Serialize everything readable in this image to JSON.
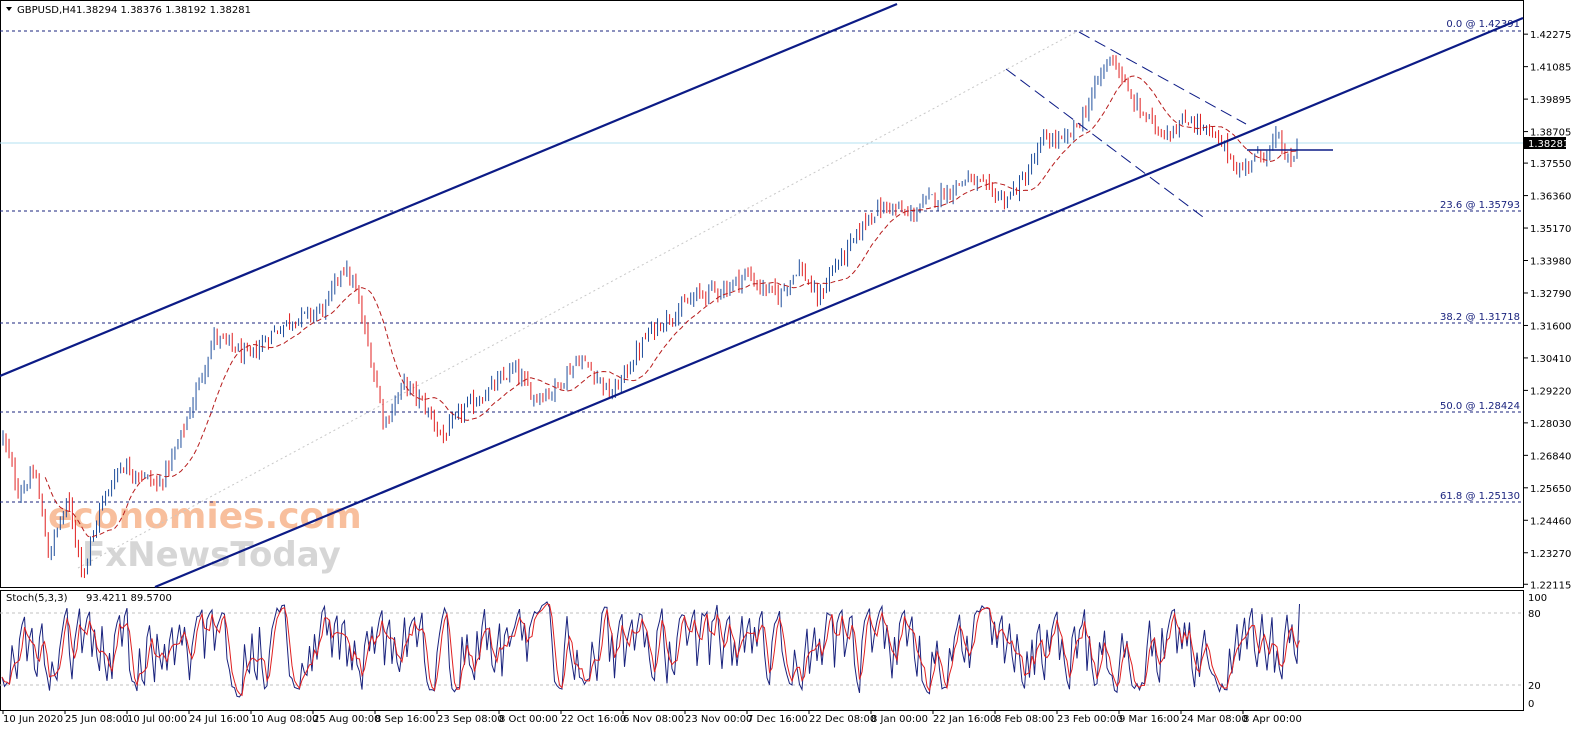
{
  "header": {
    "symbol_label": "GBPUSD,H4",
    "ohlc_text": "1.38294 1.38376 1.38192 1.38281",
    "menu_icon": "triangle-down-icon"
  },
  "watermark": {
    "line1": "economies.com",
    "line2": "FxNewsToday"
  },
  "colors": {
    "up_bar": "#1f4e9c",
    "down_bar": "#e02020",
    "trend_line": "#0c1b86",
    "fib_line": "#1a237e",
    "ma_line": "#b71c1c",
    "price_line": "#b3e0f2",
    "stoch_main": "#1a237e",
    "stoch_signal": "#e02020",
    "watermark_orange": "#f7b58c",
    "watermark_gray": "#cfcfcf"
  },
  "chart_data": {
    "type": "candlestick",
    "title": "GBPUSD,H4",
    "current_price": "1.38281",
    "ylim": [
      1.21,
      1.434
    ],
    "y_ticks": [
      "1.42275",
      "1.41085",
      "1.39895",
      "1.38705",
      "1.37550",
      "1.36360",
      "1.35170",
      "1.33980",
      "1.32790",
      "1.31600",
      "1.30410",
      "1.29220",
      "1.28030",
      "1.26840",
      "1.25650",
      "1.24460",
      "1.23270",
      "1.22115"
    ],
    "x_ticks": [
      "10 Jun 2020",
      "25 Jun 08:00",
      "10 Jul 00:00",
      "24 Jul 16:00",
      "10 Aug 08:00",
      "25 Aug 00:00",
      "8 Sep 16:00",
      "23 Sep 08:00",
      "8 Oct 00:00",
      "22 Oct 16:00",
      "6 Nov 08:00",
      "23 Nov 00:00",
      "7 Dec 16:00",
      "22 Dec 08:00",
      "8 Jan 00:00",
      "22 Jan 16:00",
      "8 Feb 08:00",
      "23 Feb 00:00",
      "9 Mar 16:00",
      "24 Mar 08:00",
      "8 Apr 00:00"
    ],
    "price_path": [
      [
        0,
        1.275
      ],
      [
        0.012,
        1.255
      ],
      [
        0.025,
        1.262
      ],
      [
        0.035,
        1.232
      ],
      [
        0.05,
        1.252
      ],
      [
        0.062,
        1.225
      ],
      [
        0.075,
        1.249
      ],
      [
        0.09,
        1.265
      ],
      [
        0.105,
        1.262
      ],
      [
        0.12,
        1.257
      ],
      [
        0.135,
        1.272
      ],
      [
        0.148,
        1.29
      ],
      [
        0.163,
        1.312
      ],
      [
        0.178,
        1.308
      ],
      [
        0.19,
        1.304
      ],
      [
        0.205,
        1.312
      ],
      [
        0.222,
        1.318
      ],
      [
        0.238,
        1.32
      ],
      [
        0.25,
        1.323
      ],
      [
        0.262,
        1.338
      ],
      [
        0.272,
        1.33
      ],
      [
        0.285,
        1.302
      ],
      [
        0.295,
        1.28
      ],
      [
        0.31,
        1.295
      ],
      [
        0.325,
        1.287
      ],
      [
        0.34,
        1.275
      ],
      [
        0.355,
        1.285
      ],
      [
        0.375,
        1.292
      ],
      [
        0.395,
        1.3
      ],
      [
        0.41,
        1.29
      ],
      [
        0.425,
        1.292
      ],
      [
        0.445,
        1.304
      ],
      [
        0.46,
        1.297
      ],
      [
        0.47,
        1.29
      ],
      [
        0.485,
        1.302
      ],
      [
        0.5,
        1.314
      ],
      [
        0.52,
        1.321
      ],
      [
        0.54,
        1.328
      ],
      [
        0.56,
        1.33
      ],
      [
        0.575,
        1.335
      ],
      [
        0.585,
        1.33
      ],
      [
        0.6,
        1.327
      ],
      [
        0.615,
        1.338
      ],
      [
        0.63,
        1.325
      ],
      [
        0.64,
        1.336
      ],
      [
        0.655,
        1.345
      ],
      [
        0.67,
        1.357
      ],
      [
        0.685,
        1.36
      ],
      [
        0.7,
        1.356
      ],
      [
        0.715,
        1.362
      ],
      [
        0.73,
        1.365
      ],
      [
        0.745,
        1.37
      ],
      [
        0.76,
        1.366
      ],
      [
        0.775,
        1.362
      ],
      [
        0.79,
        1.37
      ],
      [
        0.805,
        1.385
      ],
      [
        0.82,
        1.383
      ],
      [
        0.835,
        1.393
      ],
      [
        0.85,
        1.41
      ],
      [
        0.858,
        1.415
      ],
      [
        0.87,
        1.4
      ],
      [
        0.882,
        1.393
      ],
      [
        0.895,
        1.387
      ],
      [
        0.905,
        1.388
      ],
      [
        0.918,
        1.392
      ],
      [
        0.93,
        1.387
      ],
      [
        0.945,
        1.381
      ],
      [
        0.955,
        1.372
      ],
      [
        0.965,
        1.377
      ],
      [
        0.978,
        1.38
      ],
      [
        0.985,
        1.385
      ],
      [
        0.995,
        1.374
      ],
      [
        1.0,
        1.382
      ]
    ],
    "stoch_params": "Stoch(5,3,3)",
    "stoch_values": "93.4211 89.5700",
    "stoch_levels": [
      "100",
      "80",
      "20",
      "0"
    ],
    "fib_levels": [
      {
        "label": "0.0 @ 1.42391"
      },
      {
        "label": "23.6 @ 1.35793"
      },
      {
        "label": "38.2 @ 1.31718"
      },
      {
        "label": "50.0 @ 1.28424"
      },
      {
        "label": "61.8 @ 1.25130"
      }
    ],
    "grid": false
  }
}
